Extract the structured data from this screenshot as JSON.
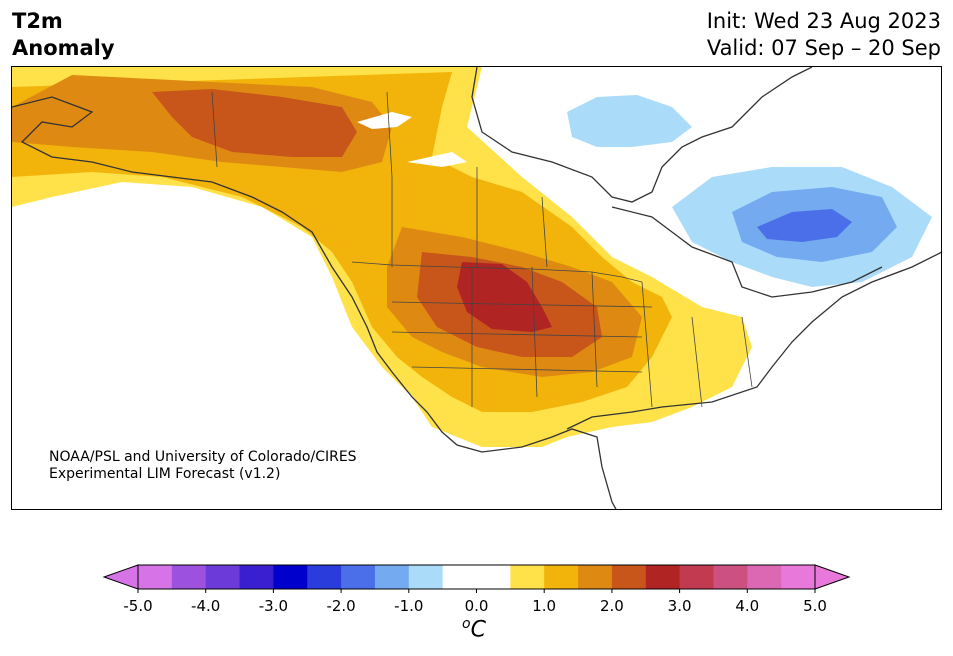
{
  "title": {
    "variable": "T2m",
    "subtitle": "Anomaly",
    "init": "Init: Wed 23 Aug 2023",
    "valid": "Valid: 07 Sep – 20 Sep"
  },
  "credit": {
    "line1": "NOAA/PSL and University of Colorado/CIRES",
    "line2": "Experimental LIM Forecast (v1.2)"
  },
  "colorbar": {
    "unit": "C",
    "unit_prefix": "o",
    "ticks": [
      "-5.0",
      "-4.0",
      "-3.0",
      "-2.0",
      "-1.0",
      "0.0",
      "1.0",
      "2.0",
      "3.0",
      "4.0",
      "5.0"
    ],
    "colors": [
      "#d673e6",
      "#9c52de",
      "#6b3ad9",
      "#3a1fd0",
      "#0000cd",
      "#2a3ddc",
      "#4a6fe8",
      "#74aaf0",
      "#aadcfa",
      "#ffffff",
      "#ffffff",
      "#ffe24a",
      "#f2b40a",
      "#de8a12",
      "#c8561a",
      "#b02424",
      "#c23a50",
      "#cc5080",
      "#dc68b4",
      "#e878da"
    ]
  },
  "colors": {
    "light_yellow": "#ffe24a",
    "gold": "#f2b40a",
    "orange": "#de8a12",
    "dark_orange": "#c8561a",
    "red": "#b02424",
    "light_blue": "#aadcfa",
    "mid_blue": "#74aaf0",
    "blue": "#4a6fe8"
  }
}
